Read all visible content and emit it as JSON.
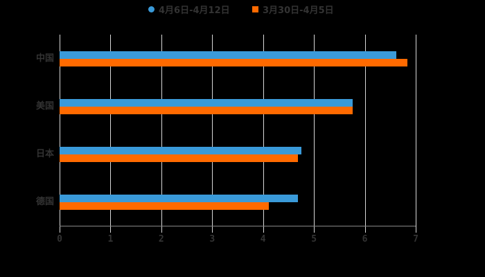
{
  "chart_data": {
    "type": "bar",
    "orientation": "horizontal",
    "title": "",
    "xlabel": "",
    "ylabel": "",
    "categories": [
      "中国",
      "美国",
      "日本",
      "德国"
    ],
    "series": [
      {
        "name": "4月6日-4月12日",
        "color": "#3a9ad9",
        "marker": "circle",
        "values": [
          6.62,
          5.76,
          4.75,
          4.69
        ]
      },
      {
        "name": "3月30日-4月5日",
        "color": "#ff6a00",
        "marker": "square",
        "values": [
          6.84,
          5.76,
          4.69,
          4.11
        ]
      }
    ],
    "xlim": [
      0,
      7
    ],
    "xticks": [
      "0",
      "1",
      "2",
      "3",
      "4",
      "5",
      "6",
      "7"
    ],
    "grid": "vertical",
    "legend_position": "top"
  },
  "colors": {
    "background": "#000000",
    "gridline": "#d9d9d9",
    "text": "#333333"
  }
}
